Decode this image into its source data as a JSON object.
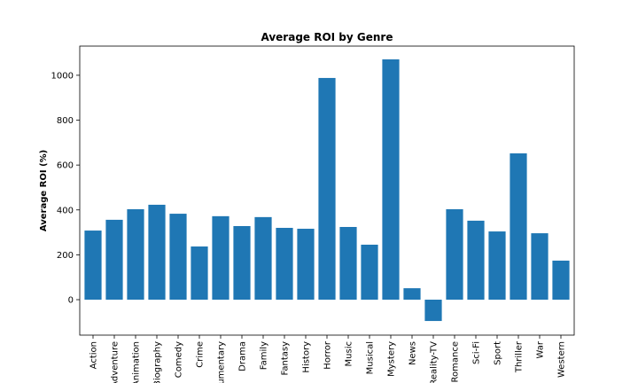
{
  "chart_data": {
    "type": "bar",
    "title": "Average ROI by Genre",
    "y_label": "Average ROI (%)",
    "categories": [
      "Action",
      "Adventure",
      "Animation",
      "Biography",
      "Comedy",
      "Crime",
      "Documentary",
      "Drama",
      "Family",
      "Fantasy",
      "History",
      "Horror",
      "Music",
      "Musical",
      "Mystery",
      "News",
      "Reality-TV",
      "Romance",
      "Sci-Fi",
      "Sport",
      "Thriller",
      "War",
      "Western"
    ],
    "values": [
      308,
      356,
      403,
      423,
      383,
      237,
      372,
      328,
      368,
      320,
      316,
      988,
      324,
      245,
      1071,
      51,
      -95,
      403,
      352,
      304,
      652,
      296,
      174
    ],
    "color": "#1f77b4",
    "ylim": [
      -158,
      1130
    ],
    "yticks": [
      0,
      200,
      400,
      600,
      800,
      1000
    ],
    "grid": false
  }
}
